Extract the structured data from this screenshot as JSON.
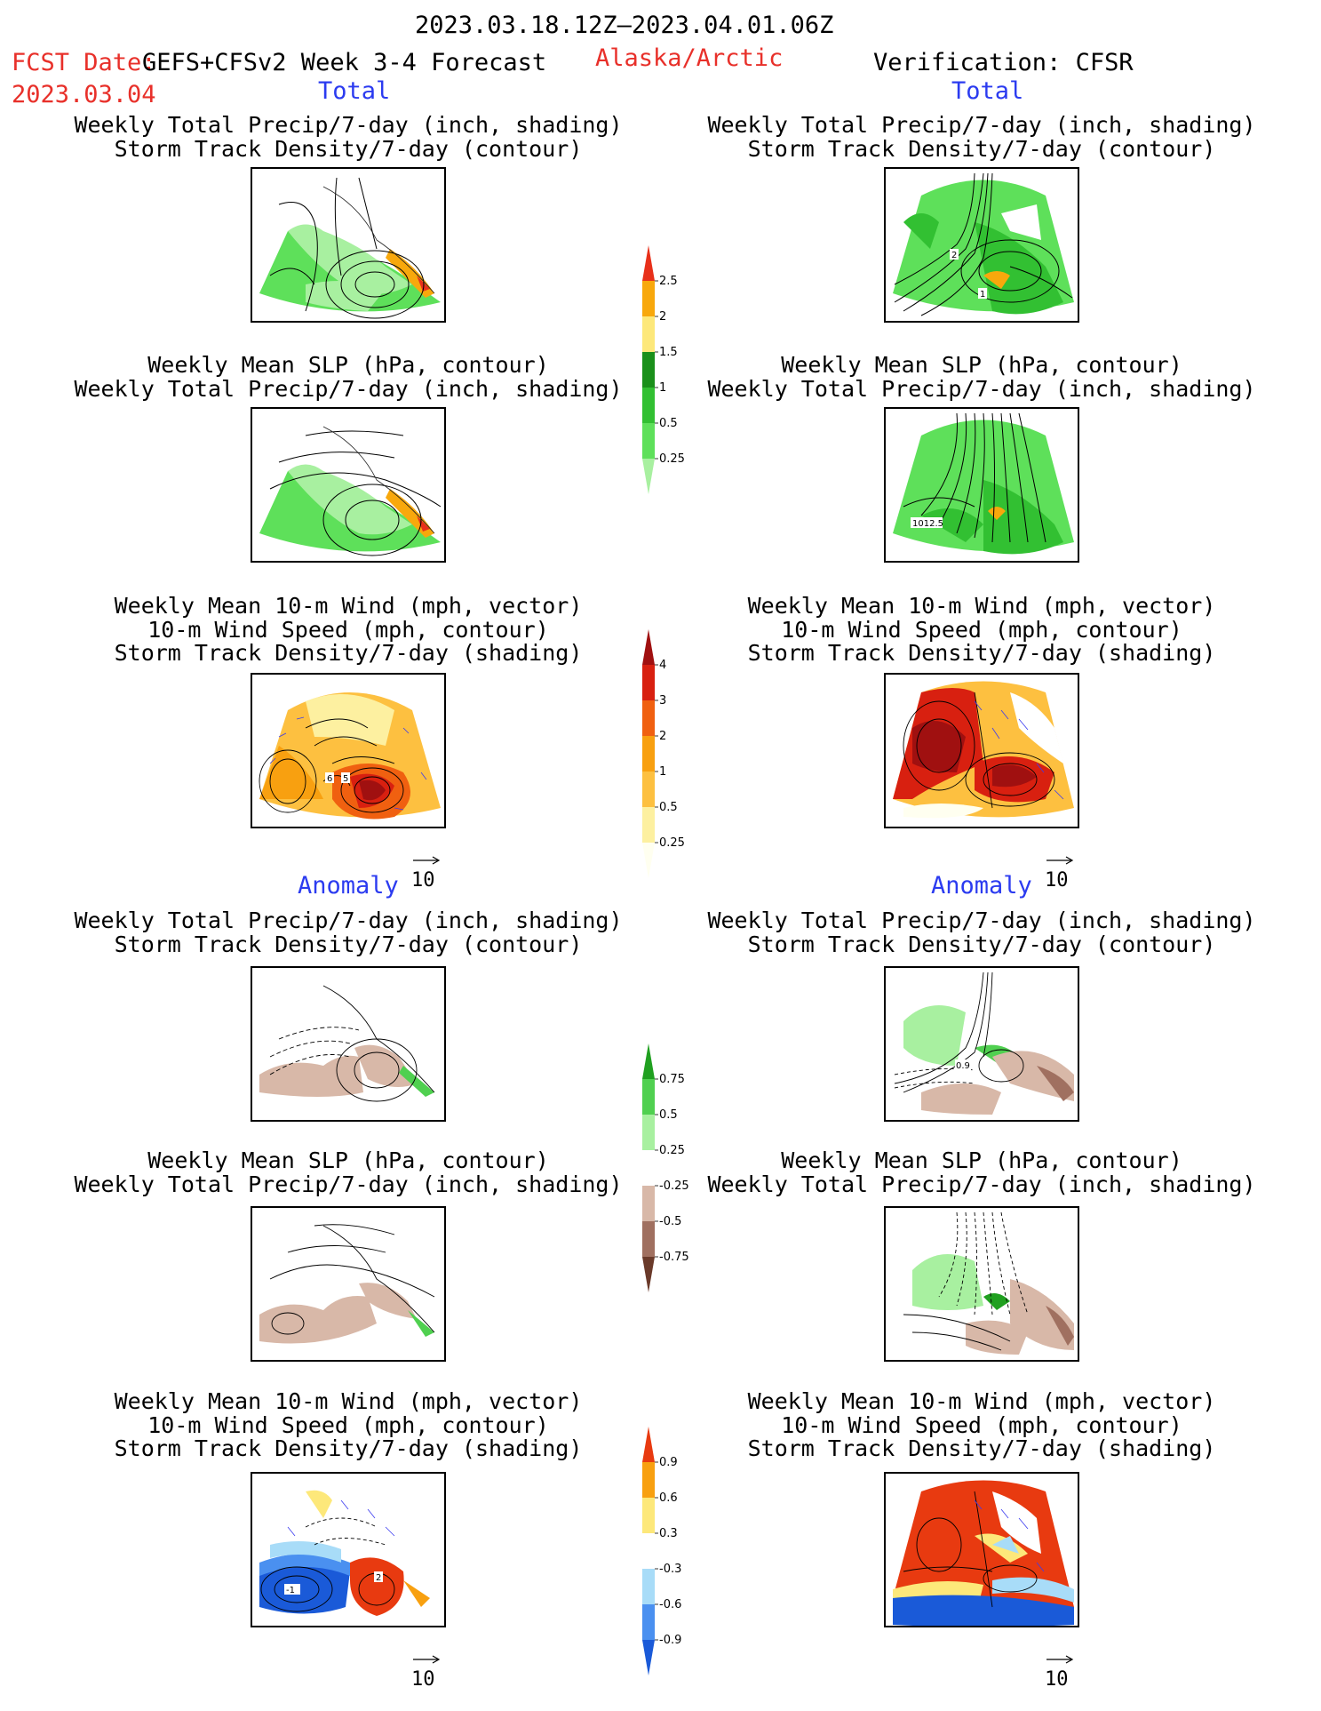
{
  "header": {
    "period": "2023.03.18.12Z–2023.04.01.06Z",
    "fcst_label": "FCST Date:",
    "product": "GEFS+CFSv2 Week 3-4 Forecast",
    "fcst_date": "2023.03.04",
    "region": "Alaska/Arctic",
    "verification": "Verification: CFSR"
  },
  "sections": {
    "total_left": "Total",
    "total_right": "Total",
    "anomaly_left": "Anomaly",
    "anomaly_right": "Anomaly"
  },
  "titles": {
    "precip_storm": [
      "Weekly Total Precip/7-day (inch, shading)",
      "Storm Track Density/7-day (contour)"
    ],
    "slp_precip": [
      "Weekly Mean SLP (hPa, contour)",
      "Weekly Total Precip/7-day (inch, shading)"
    ],
    "wind_storm": [
      "Weekly Mean 10-m Wind (mph, vector)",
      "10-m Wind Speed (mph, contour)",
      "Storm Track Density/7-day (shading)"
    ]
  },
  "vector_key": "10",
  "contour_labels": {
    "p1_right_a": "2",
    "p1_right_b": "1",
    "p2_right": "1012.5",
    "p3_left_a": "6",
    "p3_left_b": "5",
    "p4_right": "0.9",
    "p6_left": "-1",
    "p6_left_b": "2"
  },
  "chart_data": [
    {
      "type": "colorbar",
      "name": "Total precipitation",
      "levels": [
        "0.25",
        "0.5",
        "1",
        "1.5",
        "2",
        "2.5"
      ],
      "colors": [
        "#a8f0a0",
        "#5ee05a",
        "#32c032",
        "#1a901a",
        "#fde87a",
        "#f8a80c",
        "#e8301a"
      ]
    },
    {
      "type": "colorbar",
      "name": "Total storm track density",
      "levels": [
        "0.25",
        "0.5",
        "1",
        "2",
        "3",
        "4"
      ],
      "colors": [
        "#fffff0",
        "#fdf0a0",
        "#fdc040",
        "#f8a010",
        "#f06010",
        "#d82010",
        "#a01010"
      ]
    },
    {
      "type": "colorbar",
      "name": "Precipitation anomaly",
      "levels": [
        "-0.75",
        "-0.5",
        "-0.25",
        "0.25",
        "0.5",
        "0.75"
      ],
      "colors": [
        "#6a3a2a",
        "#a07060",
        "#d8b8a8",
        "#ffffff",
        "#a8f0a0",
        "#50d050",
        "#20a020"
      ]
    },
    {
      "type": "colorbar",
      "name": "Storm track density anomaly",
      "levels": [
        "-0.9",
        "-0.6",
        "-0.3",
        "0.3",
        "0.6",
        "0.9"
      ],
      "colors": [
        "#1a5ad8",
        "#4a90f0",
        "#a8dcf8",
        "#ffffff",
        "#fde87a",
        "#f8a010",
        "#e83a10"
      ]
    }
  ]
}
